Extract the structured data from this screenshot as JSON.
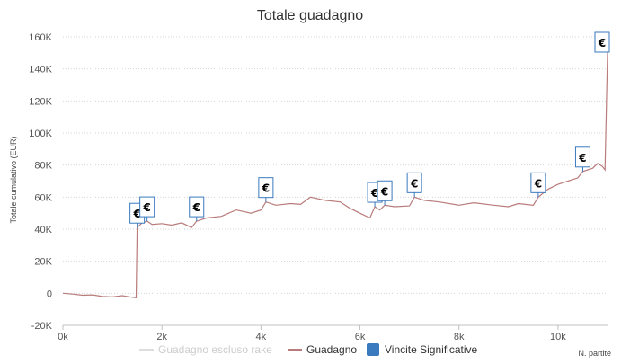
{
  "chart_data": {
    "type": "line",
    "title": "Totale guadagno",
    "ylabel": "Totale cumulativo (EUR)",
    "xlabel": "N. partite",
    "xlim": [
      0,
      11000
    ],
    "ylim": [
      -20000,
      160000
    ],
    "x_ticks": [
      0,
      2000,
      4000,
      6000,
      8000,
      10000
    ],
    "x_tick_labels": [
      "0k",
      "2k",
      "4k",
      "6k",
      "8k",
      "10k"
    ],
    "y_ticks": [
      -20000,
      0,
      20000,
      40000,
      60000,
      80000,
      100000,
      120000,
      140000,
      160000
    ],
    "y_tick_labels": [
      "-20K",
      "0",
      "20K",
      "40K",
      "60K",
      "80K",
      "100K",
      "120K",
      "140K",
      "160K"
    ],
    "grid": true,
    "legend_position": "bottom",
    "series": [
      {
        "name": "Guadagno escluso rake",
        "color": "#dddddd",
        "visible": false,
        "points": []
      },
      {
        "name": "Guadagno",
        "color": "#b97b7b",
        "points": [
          [
            0,
            0
          ],
          [
            200,
            -500
          ],
          [
            400,
            -1200
          ],
          [
            600,
            -1000
          ],
          [
            800,
            -2000
          ],
          [
            1000,
            -2300
          ],
          [
            1200,
            -1500
          ],
          [
            1400,
            -2500
          ],
          [
            1480,
            -2800
          ],
          [
            1500,
            41000
          ],
          [
            1600,
            44000
          ],
          [
            1700,
            45000
          ],
          [
            1800,
            43000
          ],
          [
            2000,
            43500
          ],
          [
            2200,
            42500
          ],
          [
            2400,
            44000
          ],
          [
            2600,
            41000
          ],
          [
            2700,
            45000
          ],
          [
            2900,
            47000
          ],
          [
            3200,
            48000
          ],
          [
            3500,
            52000
          ],
          [
            3800,
            50000
          ],
          [
            4000,
            52000
          ],
          [
            4100,
            57000
          ],
          [
            4300,
            55000
          ],
          [
            4600,
            56000
          ],
          [
            4800,
            55500
          ],
          [
            5000,
            60000
          ],
          [
            5300,
            58000
          ],
          [
            5600,
            57000
          ],
          [
            5800,
            53000
          ],
          [
            6000,
            50000
          ],
          [
            6200,
            47000
          ],
          [
            6300,
            54000
          ],
          [
            6400,
            52000
          ],
          [
            6500,
            55000
          ],
          [
            6700,
            54000
          ],
          [
            7000,
            54500
          ],
          [
            7100,
            60000
          ],
          [
            7300,
            58000
          ],
          [
            7600,
            57000
          ],
          [
            8000,
            55000
          ],
          [
            8300,
            56500
          ],
          [
            8700,
            55000
          ],
          [
            9000,
            54000
          ],
          [
            9200,
            56000
          ],
          [
            9500,
            55000
          ],
          [
            9600,
            60000
          ],
          [
            9800,
            65000
          ],
          [
            10000,
            68000
          ],
          [
            10200,
            70000
          ],
          [
            10400,
            72000
          ],
          [
            10500,
            76000
          ],
          [
            10700,
            78000
          ],
          [
            10800,
            81000
          ],
          [
            10900,
            79000
          ],
          [
            10950,
            77000
          ],
          [
            11000,
            150000
          ]
        ]
      }
    ],
    "flags": {
      "name": "Vincite Significative",
      "color": "#3a7abf",
      "symbol": "€",
      "points": [
        [
          1500,
          41000
        ],
        [
          1700,
          45000
        ],
        [
          2700,
          45000
        ],
        [
          4100,
          57000
        ],
        [
          6300,
          54000
        ],
        [
          6500,
          55000
        ],
        [
          7100,
          60000
        ],
        [
          9600,
          60000
        ],
        [
          10500,
          76000
        ],
        [
          11000,
          150000
        ]
      ]
    }
  }
}
